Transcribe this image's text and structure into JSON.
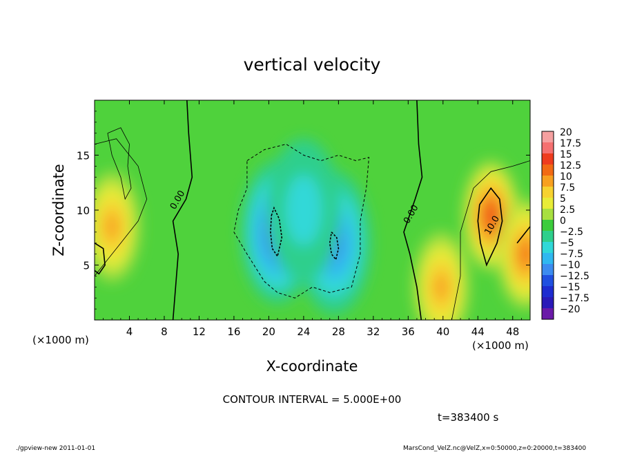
{
  "chart_data": {
    "type": "heatmap",
    "title": "vertical velocity",
    "xlabel": "X-coordinate",
    "ylabel": "Z-coordinate",
    "x_unit_left": "(×1000 m)",
    "x_unit_right": "(×1000 m)",
    "xlim": [
      0,
      50
    ],
    "ylim": [
      0,
      20
    ],
    "x_ticks": [
      4,
      8,
      12,
      16,
      20,
      24,
      28,
      32,
      36,
      40,
      44,
      48
    ],
    "y_ticks": [
      5,
      10,
      15
    ],
    "colorbar": {
      "levels": [
        20,
        17.5,
        15,
        12.5,
        10,
        7.5,
        5,
        2.5,
        0,
        -2.5,
        -5,
        -7.5,
        -10,
        -12.5,
        -15,
        -17.5,
        -20
      ],
      "labels": [
        "20",
        "17.5",
        "15",
        "12.5",
        "10",
        "7.5",
        "5",
        "2.5",
        "0",
        "−2.5",
        "−5",
        "−7.5",
        "−10",
        "−12.5",
        "−15",
        "−17.5",
        "−20"
      ],
      "colors": [
        "#f5a0a0",
        "#f57070",
        "#ee3c1e",
        "#f26a14",
        "#f8a020",
        "#f7d230",
        "#e8ec38",
        "#a8e040",
        "#3ccc3c",
        "#2ecf8c",
        "#30d8d8",
        "#30b8f0",
        "#3c8cf0",
        "#2050e0",
        "#1e2cd0",
        "#2a1ab8",
        "#6a1aa8"
      ]
    },
    "contour_labels": [
      {
        "text": "0.00",
        "x": 9.8,
        "z": 10.8
      },
      {
        "text": "0.00",
        "x": 36.6,
        "z": 9.5
      },
      {
        "text": "10.0",
        "x": 45.9,
        "z": 8.5
      }
    ],
    "hotspots": [
      {
        "x": 45.5,
        "z": 9.5,
        "value": 13
      },
      {
        "x": 2.0,
        "z": 8.5,
        "value": 9
      },
      {
        "x": 39.8,
        "z": 3.0,
        "value": 9
      },
      {
        "x": 49.5,
        "z": 6.0,
        "value": 11
      },
      {
        "x": 21.0,
        "z": 8.0,
        "value": -11
      },
      {
        "x": 27.5,
        "z": 7.0,
        "value": -10
      },
      {
        "x": 24.0,
        "z": 10.0,
        "value": -5
      }
    ]
  },
  "annotations": {
    "contour_interval": "CONTOUR INTERVAL = 5.000E+00",
    "time": "t=383400 s",
    "footer_left": "./gpview-new  2011-01-01",
    "footer_right": "MarsCond_VelZ.nc@VelZ,x=0:50000,z=0:20000,t=383400"
  }
}
